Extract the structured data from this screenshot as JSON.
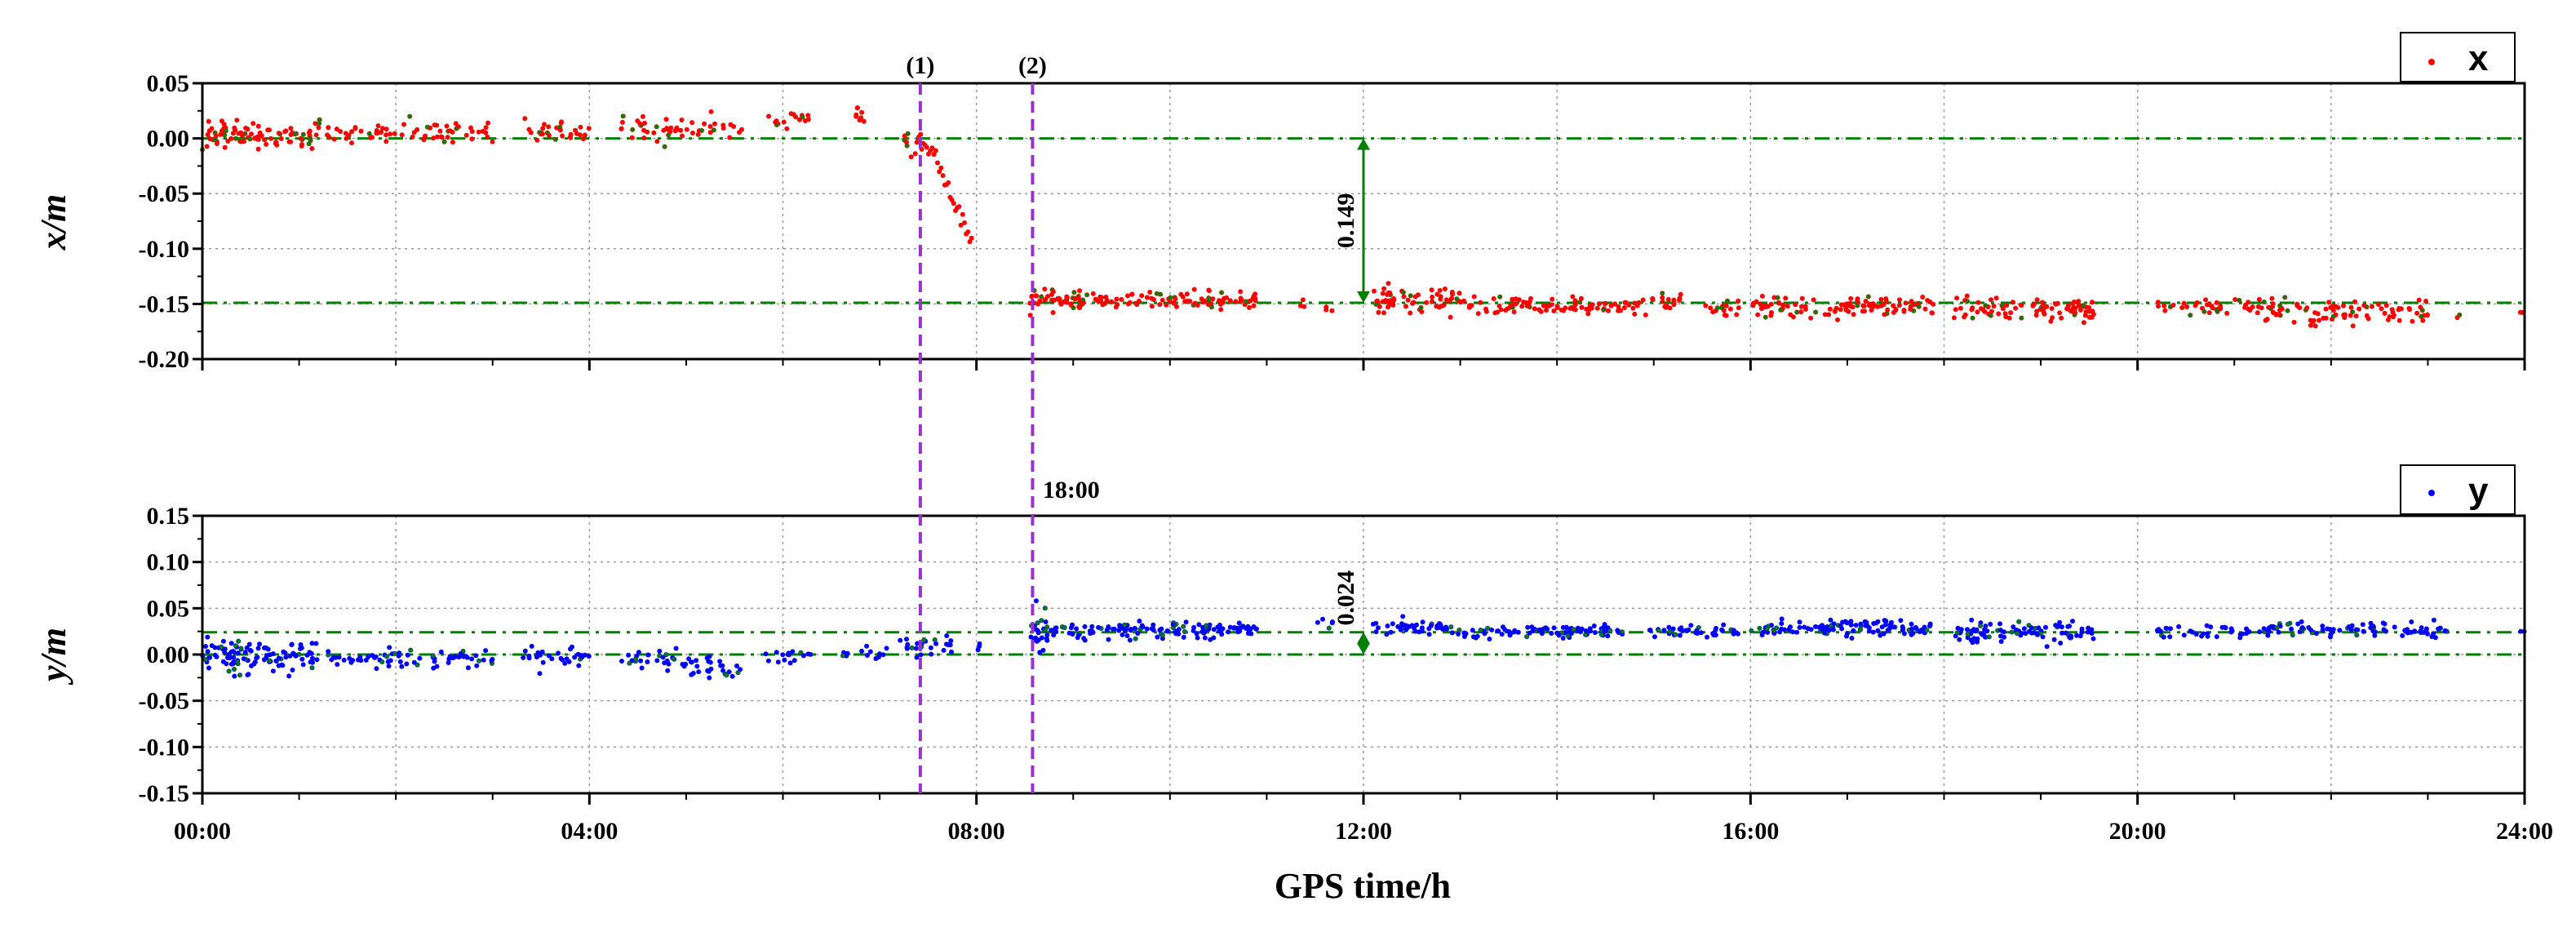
{
  "chart_data": {
    "type": "scatter",
    "xlabel": "GPS time/h",
    "x_range_hours": [
      0,
      24
    ],
    "x_tick_labels": [
      "00:00",
      "04:00",
      "08:00",
      "12:00",
      "16:00",
      "20:00",
      "24:00"
    ],
    "colors": {
      "x_series": "#ff0000",
      "y_series": "#0000ff",
      "reference": "#008000",
      "event": "#9932cc",
      "grid": "#999999"
    },
    "event_lines": [
      {
        "label": "(1)",
        "hour": 7.42
      },
      {
        "label": "(2)",
        "hour": 8.58
      }
    ],
    "panels": [
      {
        "name": "x",
        "ylabel": "x/m",
        "ylim": [
          -0.2,
          0.05
        ],
        "y_tick_labels": [
          "0.05",
          "0.00",
          "-0.05",
          "-0.10",
          "-0.15",
          "-0.20"
        ],
        "legend_label": "x",
        "reference_lines": [
          0.0,
          -0.149
        ],
        "offset_label": "0.149",
        "offset_arrow": {
          "hour": 12.0,
          "from": 0.0,
          "to": -0.149
        },
        "segments": [
          {
            "start": 0.0,
            "end": 1.2,
            "mean": 0.002,
            "noise": 0.006,
            "count": 90
          },
          {
            "start": 1.2,
            "end": 3.0,
            "mean": 0.005,
            "noise": 0.006,
            "count": 70
          },
          {
            "start": 3.3,
            "end": 4.0,
            "mean": 0.007,
            "noise": 0.005,
            "count": 30
          },
          {
            "start": 4.3,
            "end": 5.6,
            "mean": 0.01,
            "noise": 0.005,
            "count": 50
          },
          {
            "start": 5.8,
            "end": 6.3,
            "mean": 0.018,
            "noise": 0.004,
            "count": 16
          },
          {
            "start": 6.7,
            "end": 6.85,
            "mean": 0.02,
            "noise": 0.004,
            "count": 8
          },
          {
            "start": 7.25,
            "end": 7.45,
            "mean": -0.004,
            "noise": 0.006,
            "count": 12
          },
          {
            "start": 8.55,
            "end": 9.2,
            "mean": -0.145,
            "noise": 0.005,
            "count": 50
          },
          {
            "start": 9.2,
            "end": 10.9,
            "mean": -0.146,
            "noise": 0.004,
            "count": 90
          },
          {
            "start": 11.3,
            "end": 11.4,
            "mean": -0.147,
            "noise": 0.003,
            "count": 3
          },
          {
            "start": 11.6,
            "end": 11.7,
            "mean": -0.156,
            "noise": 0.003,
            "count": 3
          },
          {
            "start": 12.1,
            "end": 13.2,
            "mean": -0.146,
            "noise": 0.006,
            "count": 70
          },
          {
            "start": 13.2,
            "end": 14.6,
            "mean": -0.152,
            "noise": 0.004,
            "count": 70
          },
          {
            "start": 14.6,
            "end": 15.3,
            "mean": -0.15,
            "noise": 0.004,
            "count": 30
          },
          {
            "start": 15.5,
            "end": 15.9,
            "mean": -0.153,
            "noise": 0.004,
            "count": 16
          },
          {
            "start": 16.0,
            "end": 17.9,
            "mean": -0.153,
            "noise": 0.005,
            "count": 110
          },
          {
            "start": 18.1,
            "end": 19.6,
            "mean": -0.155,
            "noise": 0.005,
            "count": 90
          },
          {
            "start": 20.2,
            "end": 21.3,
            "mean": -0.152,
            "noise": 0.004,
            "count": 40
          },
          {
            "start": 21.3,
            "end": 23.0,
            "mean": -0.158,
            "noise": 0.005,
            "count": 90
          },
          {
            "start": 23.3,
            "end": 23.35,
            "mean": -0.16,
            "noise": 0.003,
            "count": 2
          },
          {
            "start": 23.95,
            "end": 24.0,
            "mean": -0.158,
            "noise": 0.002,
            "count": 2
          }
        ],
        "ramp": {
          "start_hour": 7.45,
          "end_hour": 7.95,
          "from": 0.004,
          "to": -0.092
        }
      },
      {
        "name": "y",
        "ylabel": "y/m",
        "ylim": [
          -0.15,
          0.15
        ],
        "y_tick_labels": [
          "0.15",
          "0.10",
          "0.05",
          "0.00",
          "-0.05",
          "-0.10",
          "-0.15"
        ],
        "legend_label": "y",
        "reference_lines": [
          0.0,
          0.024
        ],
        "offset_label": "0.024",
        "offset_arrow": {
          "hour": 12.0,
          "from": 0.0,
          "to": 0.024
        },
        "time_annotation": {
          "label": "18:00",
          "hour": 8.6
        },
        "segments": [
          {
            "start": 0.0,
            "end": 1.2,
            "mean": 0.0,
            "noise": 0.009,
            "count": 110
          },
          {
            "start": 1.3,
            "end": 3.0,
            "mean": -0.004,
            "noise": 0.005,
            "count": 70
          },
          {
            "start": 3.3,
            "end": 4.0,
            "mean": -0.002,
            "noise": 0.006,
            "count": 30
          },
          {
            "start": 4.3,
            "end": 4.9,
            "mean": -0.005,
            "noise": 0.005,
            "count": 25
          },
          {
            "start": 4.9,
            "end": 5.6,
            "mean": -0.012,
            "noise": 0.007,
            "count": 30
          },
          {
            "start": 5.8,
            "end": 6.3,
            "mean": -0.004,
            "noise": 0.005,
            "count": 16
          },
          {
            "start": 6.6,
            "end": 7.1,
            "mean": 0.002,
            "noise": 0.004,
            "count": 14
          },
          {
            "start": 7.2,
            "end": 7.75,
            "mean": 0.008,
            "noise": 0.006,
            "count": 25
          },
          {
            "start": 8.0,
            "end": 8.05,
            "mean": 0.01,
            "noise": 0.003,
            "count": 3
          },
          {
            "start": 8.55,
            "end": 8.75,
            "mean": 0.028,
            "noise": 0.01,
            "count": 25
          },
          {
            "start": 8.75,
            "end": 10.9,
            "mean": 0.026,
            "noise": 0.004,
            "count": 130
          },
          {
            "start": 11.5,
            "end": 11.7,
            "mean": 0.03,
            "noise": 0.004,
            "count": 5
          },
          {
            "start": 12.1,
            "end": 12.8,
            "mean": 0.03,
            "noise": 0.004,
            "count": 40
          },
          {
            "start": 12.8,
            "end": 14.6,
            "mean": 0.025,
            "noise": 0.004,
            "count": 90
          },
          {
            "start": 14.6,
            "end": 15.9,
            "mean": 0.025,
            "noise": 0.003,
            "count": 45
          },
          {
            "start": 16.0,
            "end": 17.9,
            "mean": 0.029,
            "noise": 0.004,
            "count": 110
          },
          {
            "start": 18.1,
            "end": 19.6,
            "mean": 0.025,
            "noise": 0.006,
            "count": 90
          },
          {
            "start": 20.2,
            "end": 21.3,
            "mean": 0.025,
            "noise": 0.004,
            "count": 35
          },
          {
            "start": 21.3,
            "end": 23.2,
            "mean": 0.027,
            "noise": 0.004,
            "count": 90
          },
          {
            "start": 23.95,
            "end": 24.0,
            "mean": 0.027,
            "noise": 0.002,
            "count": 2
          }
        ]
      }
    ]
  }
}
